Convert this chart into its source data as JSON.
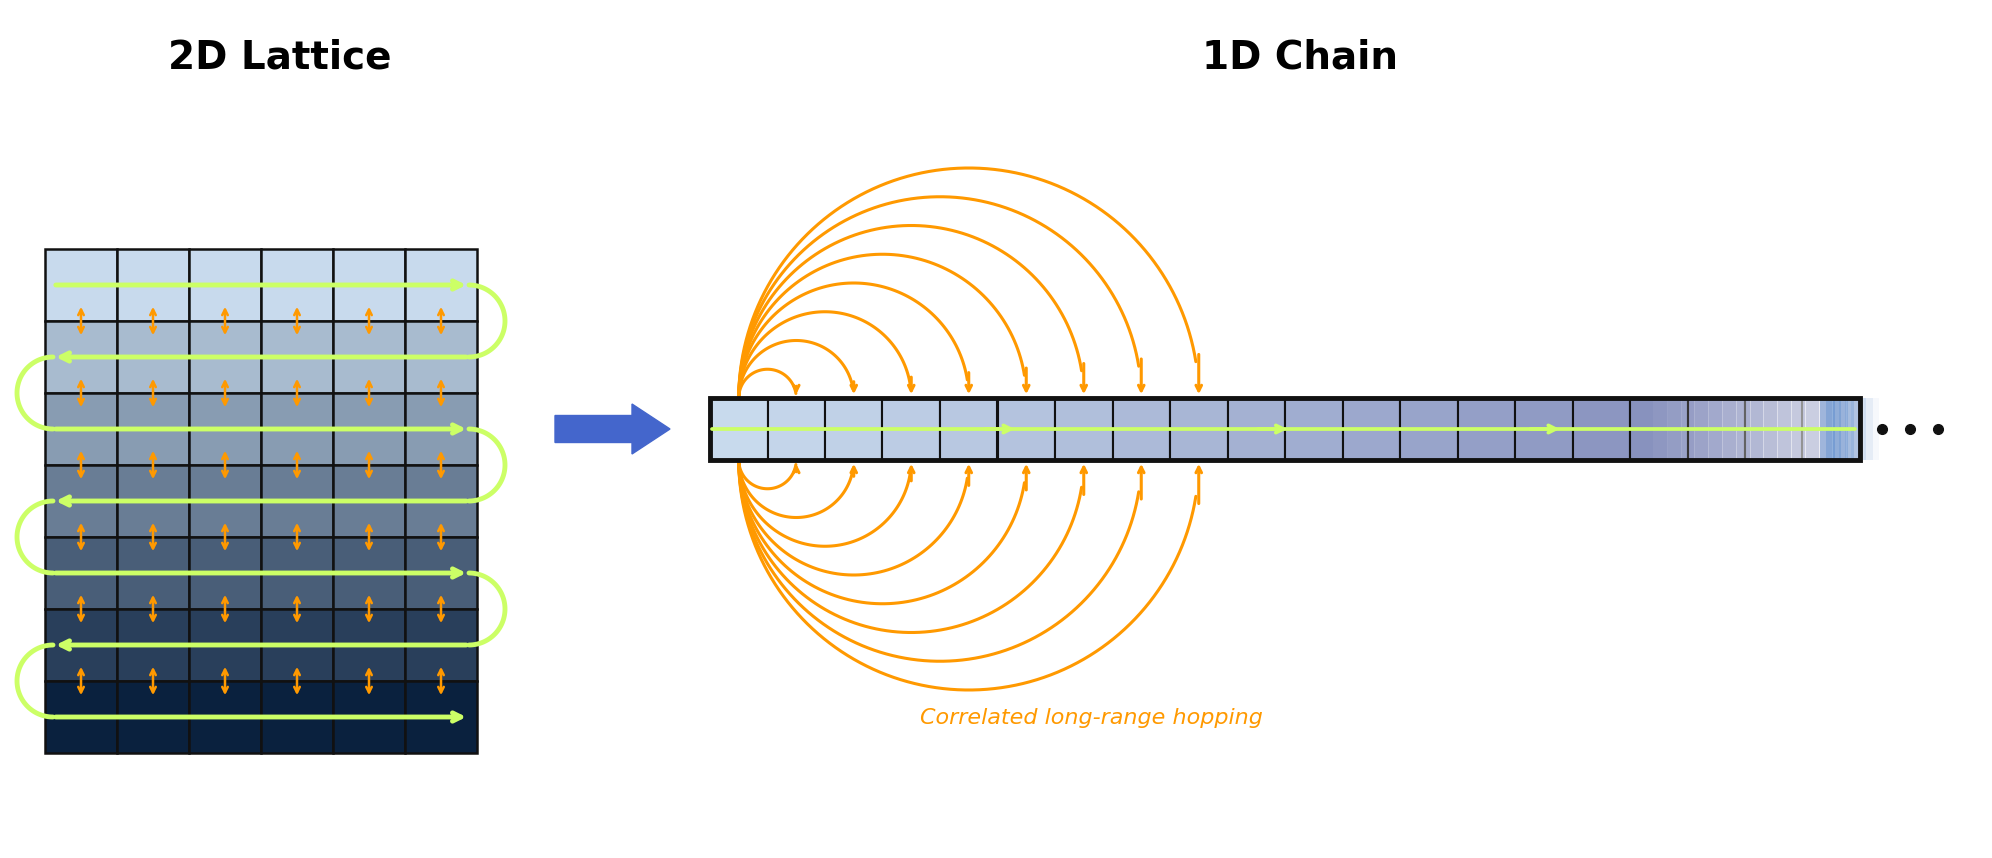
{
  "title_left": "2D Lattice",
  "title_right": "1D Chain",
  "title_fontsize": 28,
  "background_color": "#ffffff",
  "grid_rows": 7,
  "grid_cols": 6,
  "cell_border_color": "#111111",
  "snake_color": "#ccff66",
  "snake_lw": 3.5,
  "arrow_color": "#ff9900",
  "blue_arrow_color": "#4466cc",
  "orange_color": "#ff9900",
  "dot_color": "#111111",
  "label_text": "Correlated long-range hopping",
  "label_color": "#ff9900",
  "label_fontsize": 16
}
